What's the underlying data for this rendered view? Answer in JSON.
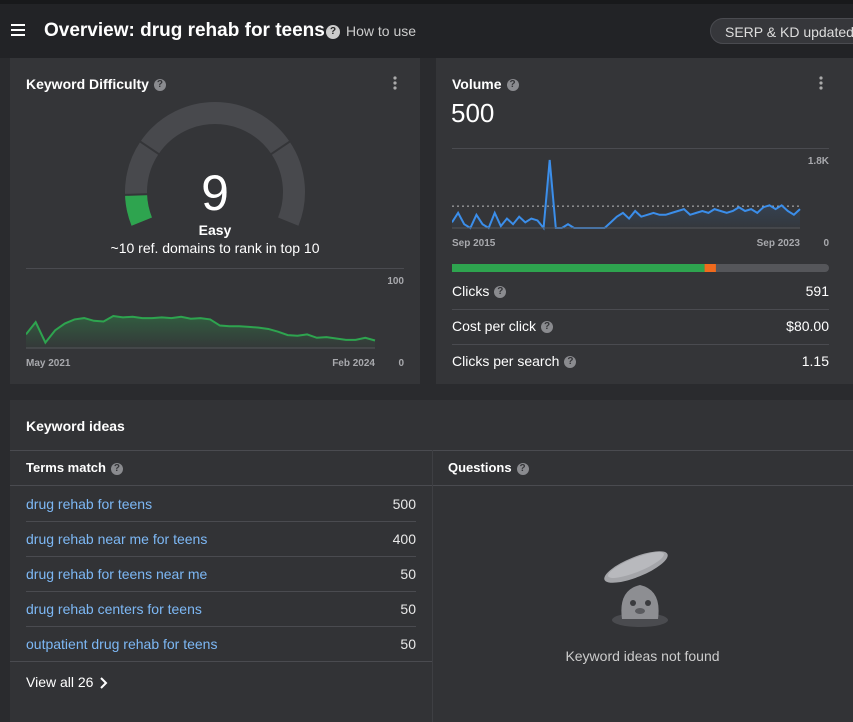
{
  "header": {
    "title": "Overview: drug rehab for teens",
    "help_link": "How to use",
    "status_button": "SERP & KD updated"
  },
  "keyword_difficulty": {
    "title": "Keyword Difficulty",
    "value": 9,
    "max": 100,
    "label": "Easy",
    "subtitle": "~10 ref. domains to rank in top 10",
    "trend": {
      "type": "area",
      "x_start_label": "May 2021",
      "x_end_label": "Feb 2024",
      "values": [
        20,
        38,
        8,
        26,
        36,
        42,
        44,
        40,
        39,
        47,
        45,
        46,
        44,
        44,
        45,
        44,
        46,
        43,
        44,
        42,
        33,
        32,
        32,
        31,
        30,
        28,
        24,
        19,
        18,
        20,
        15,
        16,
        14,
        12,
        12,
        15,
        11
      ],
      "color": "#2ea44f",
      "ylim": [
        0,
        100
      ],
      "yticks": [
        0,
        100
      ]
    }
  },
  "volume": {
    "title": "Volume",
    "value": 500,
    "trend": {
      "type": "area",
      "x_start_label": "Sep 2015",
      "x_end_label": "Sep 2023",
      "values": [
        150,
        400,
        100,
        0,
        350,
        100,
        0,
        400,
        50,
        250,
        100,
        300,
        150,
        250,
        200,
        0,
        1800,
        0,
        0,
        100,
        0,
        0,
        0,
        0,
        0,
        0,
        150,
        300,
        400,
        250,
        450,
        300,
        350,
        400,
        350,
        350,
        400,
        450,
        500,
        350,
        400,
        450,
        400,
        500,
        450,
        400,
        450,
        550,
        450,
        500,
        400,
        550,
        600,
        500,
        600,
        450,
        350,
        500
      ],
      "reference_line": 580,
      "color": "#3b8eea",
      "ylim": [
        0,
        1800
      ],
      "yticks": [
        0,
        {
          "value": 1800,
          "label": "1.8K"
        }
      ]
    },
    "click_split": [
      {
        "color": "#2ea44f",
        "value": 67
      },
      {
        "color": "#f06a1d",
        "value": 3
      }
    ],
    "metrics": [
      {
        "label": "Clicks",
        "value": 591
      },
      {
        "label": "Cost per click",
        "value": "$80.00"
      },
      {
        "label": "Clicks per search",
        "value": 1.15
      }
    ]
  },
  "keyword_ideas": {
    "title": "Keyword ideas",
    "terms_match": {
      "title": "Terms match",
      "rows": [
        {
          "keyword": "drug rehab for teens",
          "volume": 500
        },
        {
          "keyword": "drug rehab near me for teens",
          "volume": 400
        },
        {
          "keyword": "drug rehab for teens near me",
          "volume": 50
        },
        {
          "keyword": "drug rehab centers for teens",
          "volume": 50
        },
        {
          "keyword": "outpatient drug rehab for teens",
          "volume": 50
        }
      ],
      "view_all": "View all 26"
    },
    "questions": {
      "title": "Questions",
      "empty_message": "Keyword ideas not found"
    }
  }
}
